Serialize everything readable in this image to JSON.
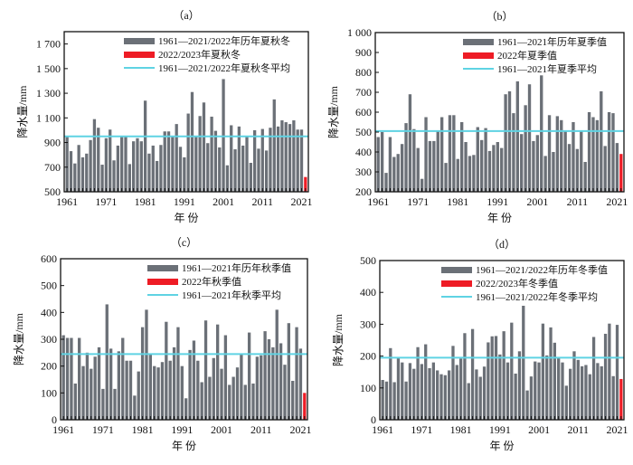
{
  "chart_data": [
    {
      "id": "a",
      "type": "bar",
      "title": "（a）",
      "xlabel": "年 份",
      "ylabel": "降水量/mm",
      "ylim": [
        500,
        1800
      ],
      "yticks": [
        500,
        700,
        900,
        1100,
        1300,
        1500,
        1700
      ],
      "ytick_labels": [
        "500",
        "700",
        "900",
        "1 100",
        "1 300",
        "1 500",
        "1 700"
      ],
      "xticks": [
        1961,
        1971,
        1981,
        1991,
        2001,
        2011,
        2021
      ],
      "legend_position": "top-right",
      "legend": [
        "1961—2021/2022年历年夏秋冬",
        "2022/2023年夏秋冬",
        "1961—2021/2022年夏秋冬平均"
      ],
      "x_start": 1961,
      "series": [
        {
          "name": "1961—2021/2022年历年夏秋冬",
          "color": "#6b7077",
          "values": [
            950,
            830,
            730,
            880,
            780,
            810,
            920,
            1090,
            1020,
            720,
            935,
            1005,
            755,
            875,
            950,
            945,
            725,
            910,
            935,
            910,
            1240,
            810,
            875,
            750,
            880,
            990,
            990,
            945,
            1050,
            865,
            780,
            1135,
            1310,
            945,
            1115,
            1225,
            895,
            1110,
            995,
            860,
            1415,
            715,
            1040,
            845,
            1030,
            875,
            945,
            735,
            1000,
            850,
            1010,
            835,
            1020,
            1250,
            1030,
            1080,
            1065,
            1050,
            1080,
            1005,
            1005
          ]
        },
        {
          "name": "2022/2023年夏秋冬",
          "color": "#ee1c25",
          "x": 2022,
          "value": 620
        }
      ],
      "average": {
        "name": "1961—2021/2022年夏秋冬平均",
        "value": 950,
        "color": "#5fd3e3"
      }
    },
    {
      "id": "b",
      "type": "bar",
      "title": "（b）",
      "xlabel": "年 份",
      "ylabel": "降水量/mm",
      "ylim": [
        200,
        1000
      ],
      "yticks": [
        200,
        300,
        400,
        500,
        600,
        700,
        800,
        900,
        1000
      ],
      "ytick_labels": [
        "200",
        "300",
        "400",
        "500",
        "600",
        "700",
        "800",
        "900",
        "1 000"
      ],
      "xticks": [
        1961,
        1971,
        1981,
        1991,
        2001,
        2011,
        2021
      ],
      "legend_position": "top-right",
      "legend": [
        "1961—2021年历年夏季值",
        "2022年夏季值",
        "1961—2021年夏季平均"
      ],
      "x_start": 1961,
      "series": [
        {
          "name": "1961—2021年历年夏季值",
          "color": "#6b7077",
          "values": [
            475,
            500,
            295,
            475,
            375,
            390,
            440,
            545,
            690,
            515,
            420,
            265,
            575,
            455,
            455,
            505,
            575,
            345,
            585,
            585,
            365,
            550,
            450,
            380,
            385,
            525,
            460,
            520,
            405,
            435,
            450,
            420,
            690,
            705,
            595,
            755,
            490,
            635,
            740,
            455,
            485,
            785,
            380,
            585,
            400,
            580,
            560,
            505,
            440,
            550,
            415,
            505,
            350,
            600,
            575,
            560,
            705,
            430,
            600,
            595,
            445
          ]
        },
        {
          "name": "2022年夏季值",
          "color": "#ee1c25",
          "x": 2022,
          "value": 390
        }
      ],
      "average": {
        "name": "1961—2021年夏季平均",
        "value": 505,
        "color": "#5fd3e3"
      }
    },
    {
      "id": "c",
      "type": "bar",
      "title": "（c）",
      "xlabel": "年 份",
      "ylabel": "降水量/mm",
      "ylim": [
        0,
        600
      ],
      "yticks": [
        0,
        100,
        200,
        300,
        400,
        500,
        600
      ],
      "ytick_labels": [
        "0",
        "100",
        "200",
        "300",
        "400",
        "500",
        "600"
      ],
      "xticks": [
        1961,
        1971,
        1981,
        1991,
        2001,
        2011,
        2021
      ],
      "legend_position": "top-right",
      "legend": [
        "1961—2021年历年秋季值",
        "2022年秋季值",
        "1961—2021年秋季平均"
      ],
      "x_start": 1961,
      "series": [
        {
          "name": "1961—2021年历年秋季值",
          "color": "#6b7077",
          "values": [
            315,
            305,
            305,
            135,
            305,
            200,
            250,
            190,
            235,
            270,
            115,
            430,
            265,
            115,
            255,
            305,
            220,
            220,
            90,
            180,
            345,
            410,
            245,
            200,
            195,
            215,
            365,
            220,
            270,
            345,
            200,
            80,
            260,
            295,
            220,
            140,
            370,
            160,
            230,
            355,
            190,
            315,
            130,
            160,
            195,
            245,
            130,
            325,
            135,
            235,
            240,
            330,
            300,
            270,
            410,
            285,
            205,
            360,
            145,
            345,
            265
          ]
        },
        {
          "name": "2022年秋季值",
          "color": "#ee1c25",
          "x": 2022,
          "value": 100
        }
      ],
      "average": {
        "name": "1961—2021年秋季平均",
        "value": 245,
        "color": "#5fd3e3"
      }
    },
    {
      "id": "d",
      "type": "bar",
      "title": "（d）",
      "xlabel": "年 份",
      "ylabel": "降水量/mm",
      "ylim": [
        0,
        500
      ],
      "yticks": [
        0,
        100,
        200,
        300,
        400,
        500
      ],
      "ytick_labels": [
        "0",
        "100",
        "200",
        "300",
        "400",
        "500"
      ],
      "xticks": [
        1961,
        1971,
        1981,
        1991,
        2001,
        2011,
        2021
      ],
      "legend_position": "top-right",
      "legend": [
        "1961—2021/2022年历年冬季值",
        "2022/2023年冬季值",
        "1961—2021/2022年冬季平均"
      ],
      "x_start": 1961,
      "series": [
        {
          "name": "1961—2021/2022年历年冬季值",
          "color": "#6b7077",
          "values": [
            125,
            120,
            225,
            118,
            195,
            180,
            120,
            178,
            160,
            228,
            175,
            237,
            162,
            180,
            155,
            143,
            140,
            155,
            232,
            172,
            192,
            272,
            115,
            285,
            158,
            135,
            167,
            243,
            262,
            263,
            205,
            278,
            180,
            305,
            145,
            215,
            358,
            92,
            136,
            183,
            180,
            302,
            202,
            290,
            242,
            195,
            180,
            107,
            160,
            215,
            188,
            168,
            172,
            143,
            260,
            178,
            168,
            270,
            302,
            137,
            298
          ]
        },
        {
          "name": "2022/2023年冬季值",
          "color": "#ee1c25",
          "x": 2022,
          "value": 128
        }
      ],
      "average": {
        "name": "1961—2021/2022年冬季平均",
        "value": 195,
        "color": "#5fd3e3"
      }
    }
  ]
}
